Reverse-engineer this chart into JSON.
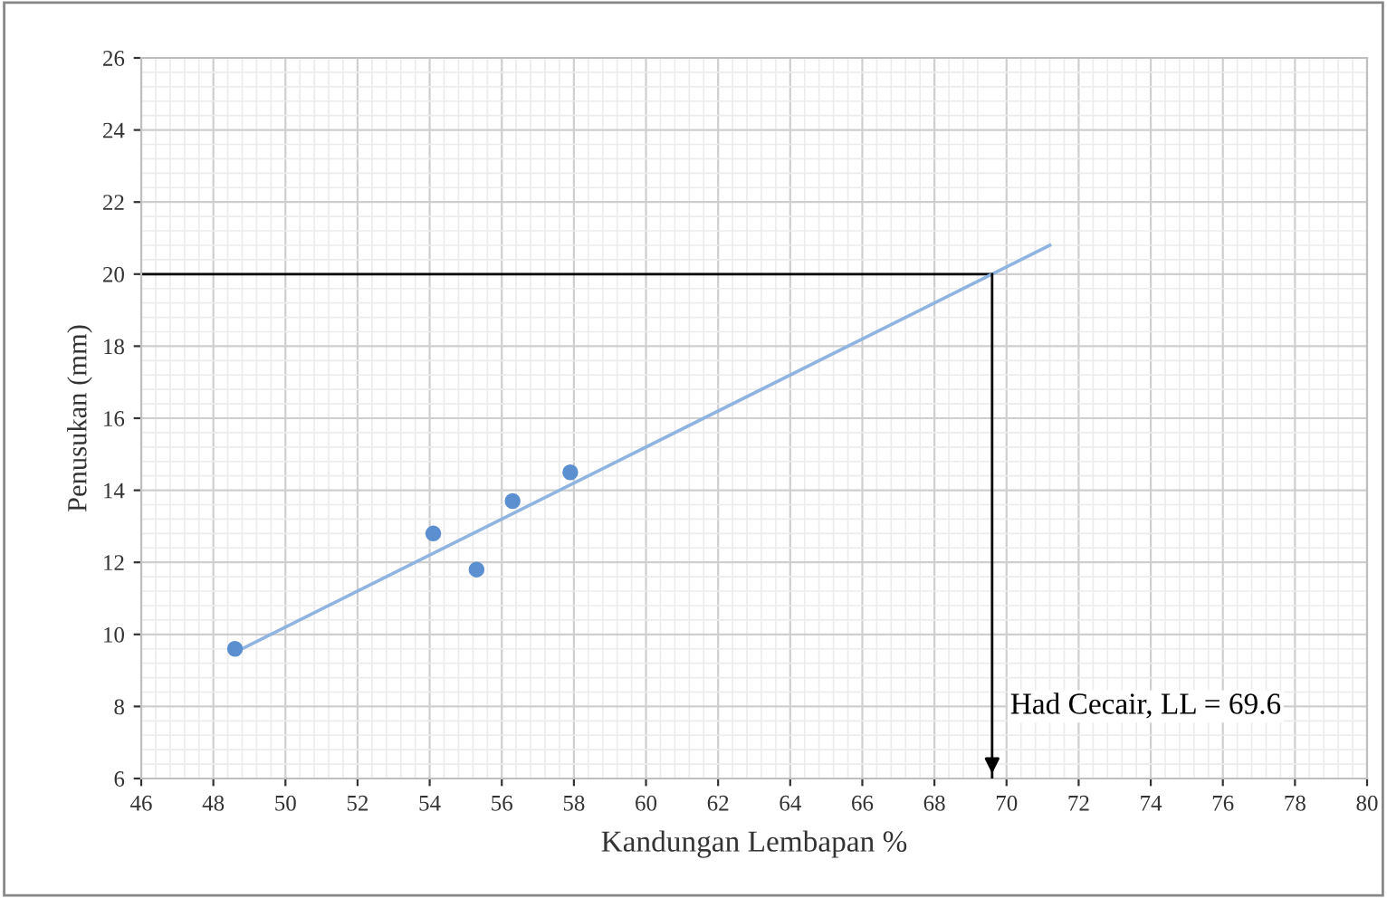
{
  "chart_data": {
    "type": "scatter",
    "xlabel": "Kandungan Lembapan %",
    "ylabel": "Penusukan (mm)",
    "xlim": [
      46,
      80
    ],
    "xticks": [
      46,
      48,
      50,
      52,
      54,
      56,
      58,
      60,
      62,
      64,
      66,
      68,
      70,
      72,
      74,
      76,
      78,
      80
    ],
    "ylim": [
      6,
      26
    ],
    "yticks": [
      6,
      8,
      10,
      12,
      14,
      16,
      18,
      20,
      22,
      24,
      26
    ],
    "grid": true,
    "marker": "circle",
    "series": [
      {
        "color": "#5b8fd0",
        "x": [
          48.6,
          54.1,
          55.3,
          56.3,
          57.9
        ],
        "values": [
          9.6,
          12.8,
          11.8,
          13.7,
          14.5
        ]
      },
      {
        "type": "line",
        "color": "#8fb4e0",
        "x": [
          48.6,
          71.2
        ],
        "values": [
          9.5,
          20.8
        ],
        "marker": "none"
      }
    ],
    "ref_lines": [
      {
        "axis": "y",
        "value": 20,
        "color": "#000000"
      },
      {
        "axis": "x",
        "value": 69.6,
        "label": "Had Cecair, LL = 69.6",
        "color": "#000000"
      }
    ]
  }
}
